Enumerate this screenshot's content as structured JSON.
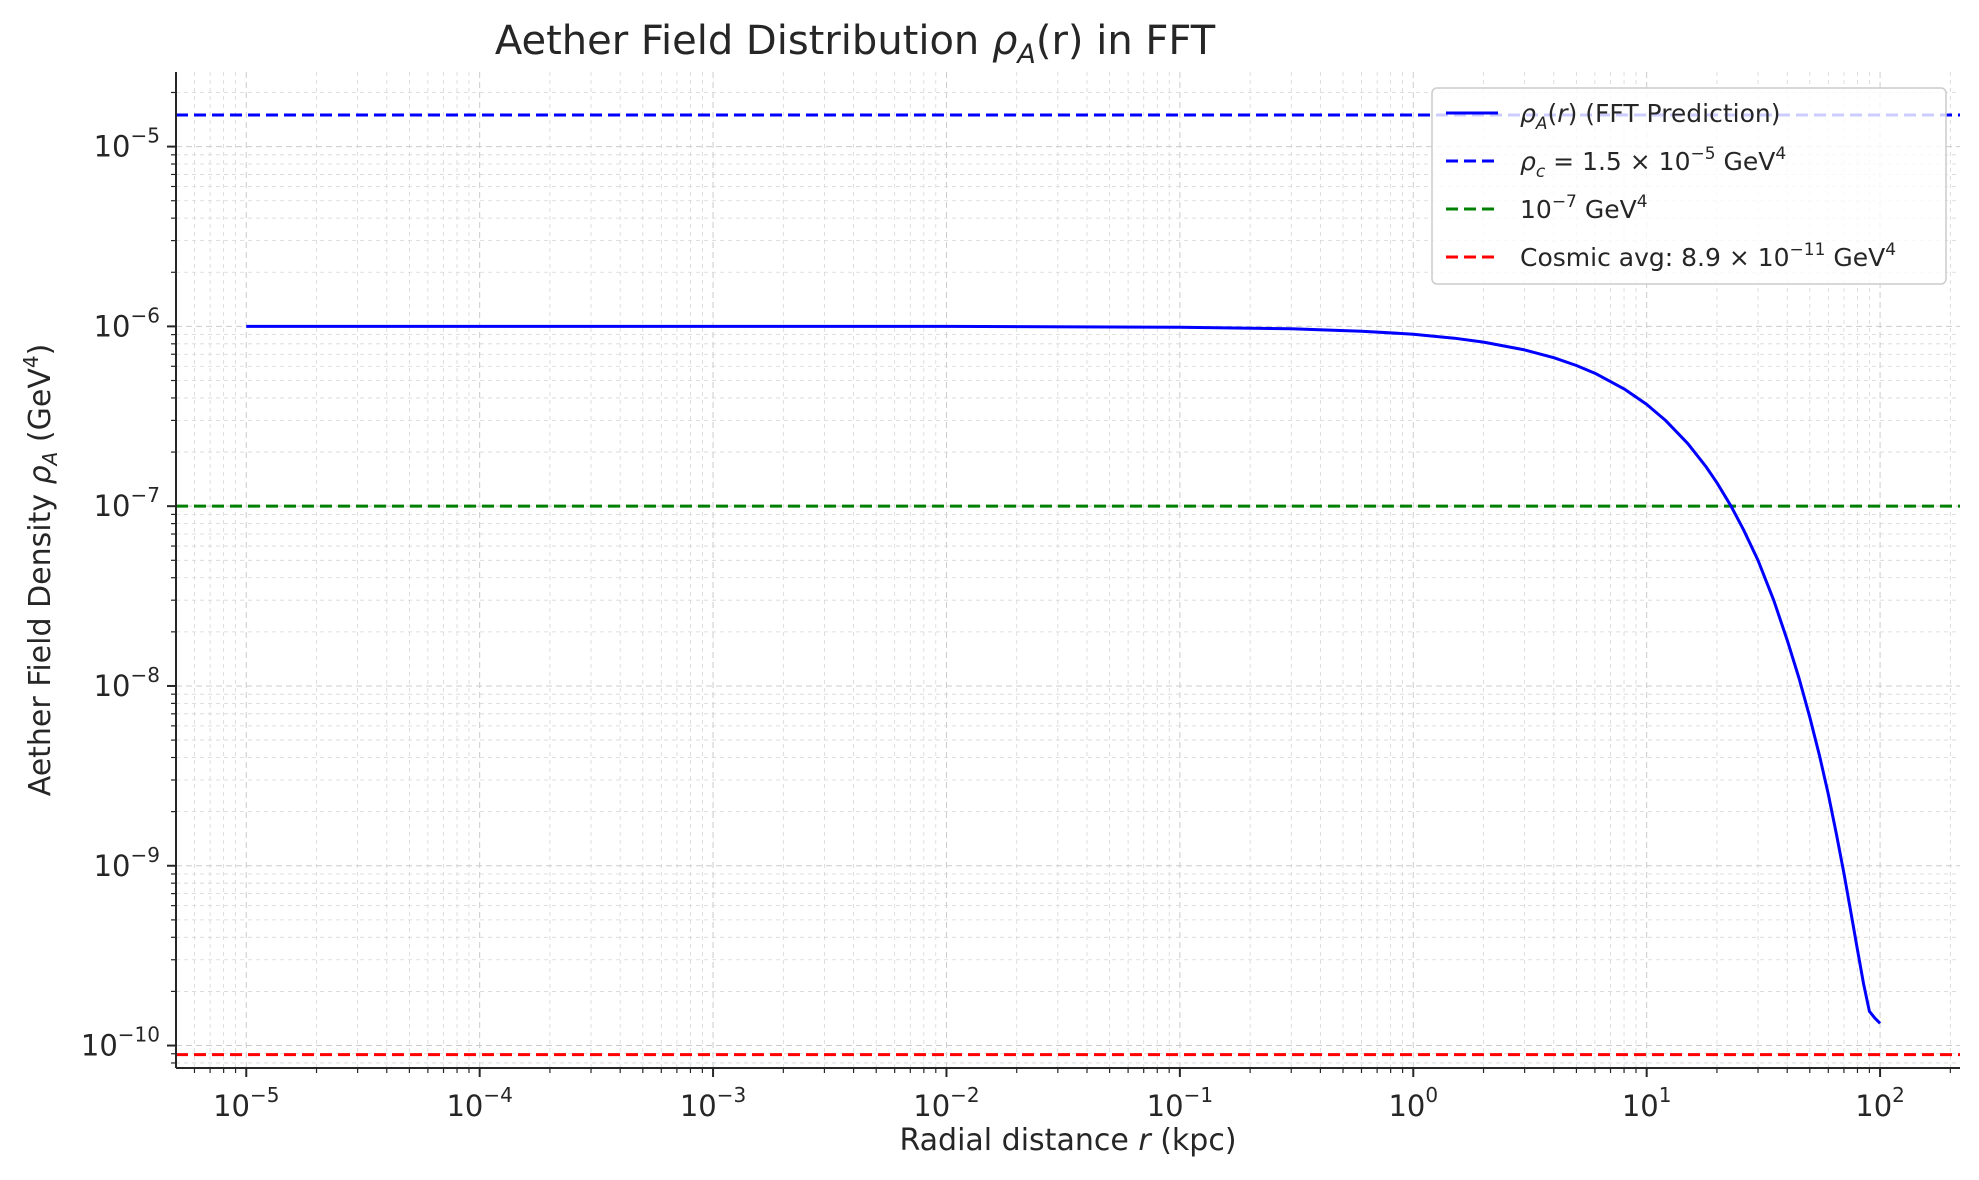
{
  "chart_data": {
    "type": "line",
    "title": "Aether Field Distribution ρ_A(r) in FFT",
    "title_parts": {
      "pre": "Aether Field Distribution ",
      "rho": "ρ",
      "sub": "A",
      "post": "(r) in FFT"
    },
    "xlabel": "Radial distance r (kpc)",
    "xlabel_parts": {
      "pre": "Radial distance ",
      "var": "r",
      "post": " (kpc)"
    },
    "ylabel": "Aether Field Density ρ_A (GeV^4)",
    "ylabel_parts": {
      "pre": "Aether Field Density ",
      "rho": "ρ",
      "sub": "A",
      "post": " (GeV",
      "sup": "4",
      "end": ")"
    },
    "x_scale": "log",
    "y_scale": "log",
    "xlim": [
      5e-06,
      220
    ],
    "ylim": [
      7.5e-11,
      2.6e-05
    ],
    "grid": true,
    "legend_position": "top-right",
    "x_ticks": [
      {
        "value": 1e-05,
        "base": "10",
        "exp": "−5"
      },
      {
        "value": 0.0001,
        "base": "10",
        "exp": "−4"
      },
      {
        "value": 0.001,
        "base": "10",
        "exp": "−3"
      },
      {
        "value": 0.01,
        "base": "10",
        "exp": "−2"
      },
      {
        "value": 0.1,
        "base": "10",
        "exp": "−1"
      },
      {
        "value": 1,
        "base": "10",
        "exp": "0"
      },
      {
        "value": 10,
        "base": "10",
        "exp": "1"
      },
      {
        "value": 100,
        "base": "10",
        "exp": "2"
      }
    ],
    "y_ticks": [
      {
        "value": 1e-10,
        "base": "10",
        "exp": "−10"
      },
      {
        "value": 1e-09,
        "base": "10",
        "exp": "−9"
      },
      {
        "value": 1e-08,
        "base": "10",
        "exp": "−8"
      },
      {
        "value": 1e-07,
        "base": "10",
        "exp": "−7"
      },
      {
        "value": 1e-06,
        "base": "10",
        "exp": "−6"
      },
      {
        "value": 1e-05,
        "base": "10",
        "exp": "−5"
      }
    ],
    "series": [
      {
        "name": "ρ_A(r) (FFT Prediction)",
        "style": "solid",
        "color": "#0000ff",
        "x": [
          1e-05,
          0.0001,
          0.001,
          0.01,
          0.1,
          0.3,
          0.6,
          1,
          1.5,
          2,
          3,
          4,
          5,
          6,
          8,
          10,
          12,
          15,
          18,
          20,
          23,
          26,
          30,
          35,
          40,
          45,
          50,
          55,
          60,
          65,
          70,
          75,
          80,
          85,
          90,
          95,
          100
        ],
        "y": [
          1e-06,
          1e-06,
          1e-06,
          1e-06,
          9.9e-07,
          9.7e-07,
          9.4e-07,
          9.05e-07,
          8.6e-07,
          8.18e-07,
          7.4e-07,
          6.7e-07,
          6.06e-07,
          5.49e-07,
          4.49e-07,
          3.68e-07,
          3.01e-07,
          2.23e-07,
          1.65e-07,
          1.35e-07,
          1e-07,
          7.4e-08,
          5e-08,
          3e-08,
          1.8e-08,
          1.1e-08,
          6.7e-09,
          4.1e-09,
          2.5e-09,
          1.5e-09,
          9.1e-10,
          5.5e-10,
          3.4e-10,
          2.2e-10,
          1.55e-10,
          1.42e-10,
          1.33e-10
        ]
      },
      {
        "name": "ρ_c = 1.5 × 10^−5 GeV^4",
        "style": "dashed",
        "color": "#0000ff",
        "hline": 1.5e-05
      },
      {
        "name": "10^−7 GeV^4",
        "style": "dashed",
        "color": "#008000",
        "hline": 1e-07
      },
      {
        "name": "Cosmic avg: 8.9 × 10^−11 GeV^4",
        "style": "dashed",
        "color": "#ff0000",
        "hline": 8.9e-11
      }
    ],
    "legend": [
      {
        "parts": [
          {
            "t": "ρ",
            "i": true
          },
          {
            "t": "A",
            "i": true,
            "s": "sub"
          },
          {
            "t": "("
          },
          {
            "t": "r",
            "i": true
          },
          {
            "t": ") (FFT Prediction)"
          }
        ]
      },
      {
        "parts": [
          {
            "t": "ρ",
            "i": true
          },
          {
            "t": "c",
            "i": true,
            "s": "sub"
          },
          {
            "t": " = 1.5 × 10"
          },
          {
            "t": "−5",
            "s": "sup"
          },
          {
            "t": " GeV"
          },
          {
            "t": "4",
            "s": "sup"
          }
        ]
      },
      {
        "parts": [
          {
            "t": "10"
          },
          {
            "t": "−7",
            "s": "sup"
          },
          {
            "t": " GeV"
          },
          {
            "t": "4",
            "s": "sup"
          }
        ]
      },
      {
        "parts": [
          {
            "t": "Cosmic avg: 8.9 × 10"
          },
          {
            "t": "−11",
            "s": "sup"
          },
          {
            "t": " GeV"
          },
          {
            "t": "4",
            "s": "sup"
          }
        ]
      }
    ]
  }
}
